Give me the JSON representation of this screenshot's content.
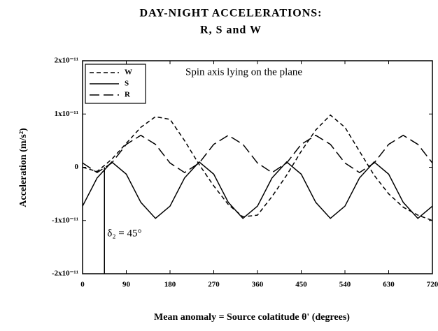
{
  "chart_data": {
    "type": "line",
    "title": "DAY-NIGHT  ACCELERATIONS:",
    "subtitle": "R,  S and  W",
    "x_label": "Mean anomaly = Source colatitude θ' (degrees)",
    "y_label": "Acceleration (m/s²)",
    "annotations": [
      {
        "text": "Spin axis lying on the plane"
      },
      {
        "text": "δ₂ = 45°",
        "x": 45
      }
    ],
    "x": [
      0,
      30,
      60,
      90,
      120,
      150,
      180,
      210,
      240,
      270,
      300,
      330,
      360,
      390,
      420,
      450,
      480,
      510,
      540,
      570,
      600,
      630,
      660,
      690,
      720
    ],
    "series": [
      {
        "name": "W",
        "color": "#000000",
        "dash": "short",
        "values": [
          0,
          -8e-13,
          1.5e-12,
          4.5e-12,
          7.5e-12,
          9.5e-12,
          9e-12,
          5e-12,
          5e-13,
          -3.5e-12,
          -7e-12,
          -9.3e-12,
          -9e-12,
          -5.5e-12,
          -1.5e-12,
          3e-12,
          7e-12,
          9.8e-12,
          7.5e-12,
          3e-12,
          -1.5e-12,
          -5e-12,
          -7.5e-12,
          -9e-12,
          -1e-11
        ]
      },
      {
        "name": "S",
        "color": "#000000",
        "dash": "solid",
        "values": [
          -7.3e-12,
          -2e-12,
          1e-12,
          -1.3e-12,
          -6.6e-12,
          -9.6e-12,
          -7.3e-12,
          -2e-12,
          1e-12,
          -1.3e-12,
          -6.6e-12,
          -9.6e-12,
          -7.3e-12,
          -2e-12,
          1e-12,
          -1.3e-12,
          -6.6e-12,
          -9.6e-12,
          -7.3e-12,
          -2e-12,
          1e-12,
          -1.3e-12,
          -6.6e-12,
          -9.6e-12,
          -7.3e-12
        ]
      },
      {
        "name": "R",
        "color": "#000000",
        "dash": "long",
        "values": [
          8e-13,
          -1e-12,
          8e-13,
          4.3e-12,
          6e-12,
          4.3e-12,
          8e-13,
          -1e-12,
          8e-13,
          4.3e-12,
          6e-12,
          4.3e-12,
          8e-13,
          -1e-12,
          8e-13,
          4.3e-12,
          6e-12,
          4.3e-12,
          8e-13,
          -1e-12,
          8e-13,
          4.3e-12,
          6e-12,
          4.3e-12,
          8e-13
        ]
      }
    ],
    "xlim": [
      0,
      720
    ],
    "xticks": [
      0,
      90,
      180,
      270,
      360,
      450,
      540,
      630,
      720
    ],
    "ylim": [
      -2e-11,
      2e-11
    ],
    "yticks": [
      {
        "value": -2e-11,
        "label": "-2x10⁻¹¹"
      },
      {
        "value": -1e-11,
        "label": "-1x10⁻¹¹"
      },
      0,
      {
        "value": 1e-11,
        "label": "1x10⁻¹¹"
      },
      {
        "value": 2e-11,
        "label": "2x10⁻¹¹"
      }
    ],
    "legend": "upper left",
    "grid": false
  }
}
